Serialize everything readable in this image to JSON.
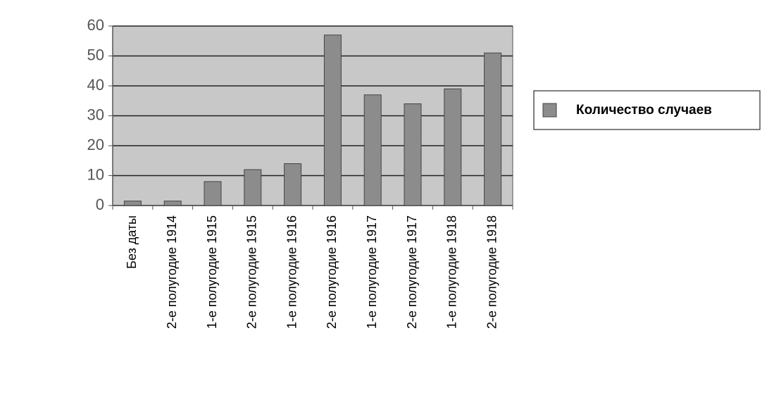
{
  "chart_data": {
    "type": "bar",
    "categories": [
      "Без даты",
      "2-е полугодие 1914",
      "1-е полугодие 1915",
      "2-е полугодие 1915",
      "1-е полугодие 1916",
      "2-е полугодие 1916",
      "1-е полугодие 1917",
      "2-е полугодие 1917",
      "1-е полугодие 1918",
      "2-е полугодие 1918"
    ],
    "series": [
      {
        "name": "Количество случаев",
        "color": "#8c8c8c",
        "values": [
          1.5,
          1.5,
          8,
          12,
          14,
          57,
          37,
          34,
          39,
          51
        ]
      }
    ],
    "ylim": [
      0,
      60
    ],
    "yticks": [
      0,
      10,
      20,
      30,
      40,
      50,
      60
    ],
    "grid": true,
    "legend": "right"
  }
}
